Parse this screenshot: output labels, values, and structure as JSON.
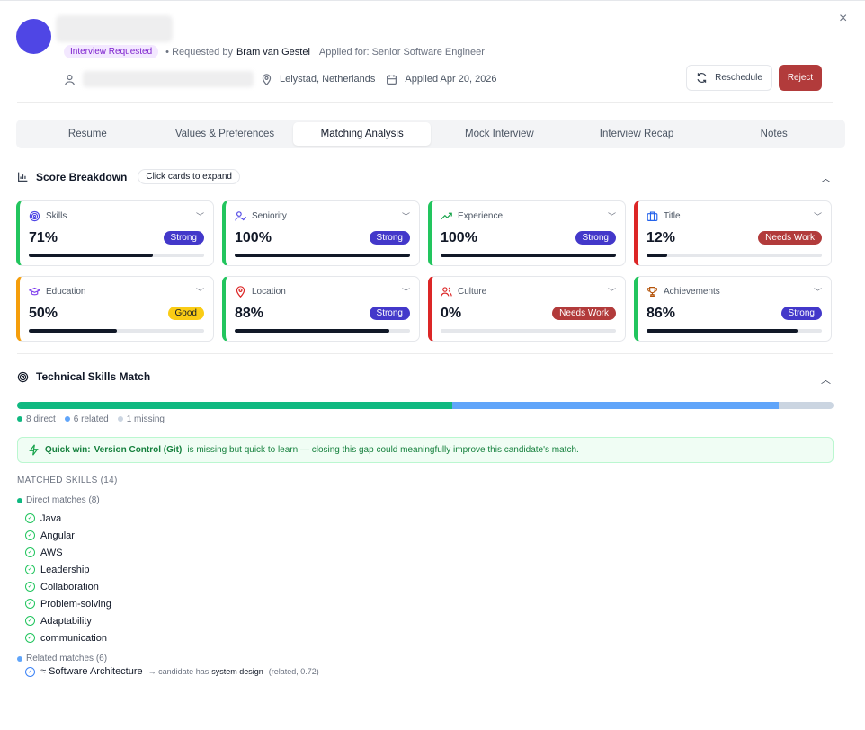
{
  "header": {
    "status_badge": "Interview Requested",
    "requested_prefix": "• Requested by",
    "requested_by": "Bram van Gestel",
    "applied_for": "Applied for: Senior Software Engineer",
    "location": "Lelystad, Netherlands",
    "applied_date": "Applied Apr 20, 2026",
    "reschedule_label": "Reschedule",
    "reject_label": "Reject",
    "close_glyph": "×"
  },
  "tabs": [
    {
      "label": "Resume",
      "active": false
    },
    {
      "label": "Values & Preferences",
      "active": false
    },
    {
      "label": "Matching Analysis",
      "active": true
    },
    {
      "label": "Mock Interview",
      "active": false
    },
    {
      "label": "Interview Recap",
      "active": false
    },
    {
      "label": "Notes",
      "active": false
    }
  ],
  "score_breakdown": {
    "title": "Score Breakdown",
    "hint": "Click cards to expand",
    "cards": [
      {
        "label": "Skills",
        "score": "71%",
        "fill": 0.71,
        "badge": "Strong",
        "badge_color": "#4338ca",
        "border_color": "#22c55e",
        "icon": "target-icon",
        "icon_color": "#4f46e5"
      },
      {
        "label": "Seniority",
        "score": "100%",
        "fill": 1.0,
        "badge": "Strong",
        "badge_color": "#4338ca",
        "border_color": "#22c55e",
        "icon": "user-check-icon",
        "icon_color": "#4f46e5"
      },
      {
        "label": "Experience",
        "score": "100%",
        "fill": 1.0,
        "badge": "Strong",
        "badge_color": "#4338ca",
        "border_color": "#22c55e",
        "icon": "trending-up-icon",
        "icon_color": "#16a34a"
      },
      {
        "label": "Title",
        "score": "12%",
        "fill": 0.12,
        "badge": "Needs Work",
        "badge_color": "#b23b3b",
        "border_color": "#dc2626",
        "icon": "briefcase-icon",
        "icon_color": "#2563eb"
      },
      {
        "label": "Education",
        "score": "50%",
        "fill": 0.5,
        "badge": "Good",
        "badge_color": "#facc15",
        "badge_text_color": "#111827",
        "border_color": "#f59e0b",
        "icon": "graduation-cap-icon",
        "icon_color": "#7c3aed"
      },
      {
        "label": "Location",
        "score": "88%",
        "fill": 0.88,
        "badge": "Strong",
        "badge_color": "#4338ca",
        "border_color": "#22c55e",
        "icon": "map-pin-icon",
        "icon_color": "#dc2626"
      },
      {
        "label": "Culture",
        "score": "0%",
        "fill": 0.0,
        "badge": "Needs Work",
        "badge_color": "#b23b3b",
        "border_color": "#dc2626",
        "icon": "users-icon",
        "icon_color": "#dc2626"
      },
      {
        "label": "Achievements",
        "score": "86%",
        "fill": 0.86,
        "badge": "Strong",
        "badge_color": "#4338ca",
        "border_color": "#22c55e",
        "icon": "trophy-icon",
        "icon_color": "#b45309"
      }
    ]
  },
  "technical": {
    "title": "Technical Skills Match",
    "distribution": [
      {
        "label": "8 direct",
        "count": 8,
        "color": "#10b981"
      },
      {
        "label": "6 related",
        "count": 6,
        "color": "#60a5fa"
      },
      {
        "label": "1 missing",
        "count": 1,
        "color": "#cbd5e1"
      }
    ],
    "quick_win_label": "Quick win:",
    "quick_win_skill": "Version Control (Git)",
    "quick_win_text": "is missing but quick to learn — closing this gap could meaningfully improve this candidate's match.",
    "matched_header": "MATCHED SKILLS (14)",
    "direct_header": "Direct matches (8)",
    "direct": [
      "Java",
      "Angular",
      "AWS",
      "Leadership",
      "Collaboration",
      "Problem-solving",
      "Adaptability",
      "communication"
    ],
    "related_header": "Related matches (6)",
    "related": [
      {
        "skill": "≈ Software Architecture",
        "arrow": "→ candidate has",
        "candidate_skill": "system design",
        "detail": "(related, 0.72)"
      }
    ]
  }
}
